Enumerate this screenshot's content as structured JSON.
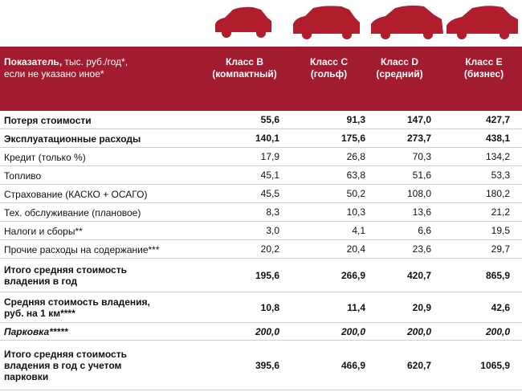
{
  "header": {
    "label_bold": "Показатель,",
    "label_rest": "тыс. руб./год*,",
    "label_line2": "если не указано иное*",
    "columns": [
      [
        "Класс B",
        "(компактный)"
      ],
      [
        "Класс C",
        "(гольф)"
      ],
      [
        "Класс D",
        "(средний)"
      ],
      [
        "Класс E",
        "(бизнес)"
      ]
    ]
  },
  "table": {
    "rows": [
      {
        "label": [
          "Потеря стоимости"
        ],
        "style": "bold",
        "values": [
          "55,6",
          "91,3",
          "147,0",
          "427,7"
        ]
      },
      {
        "label": [
          "Эксплуатационные расходы"
        ],
        "style": "bold",
        "values": [
          "140,1",
          "175,6",
          "273,7",
          "438,1"
        ]
      },
      {
        "label": [
          "Кредит (только %)"
        ],
        "style": "normal",
        "values": [
          "17,9",
          "26,8",
          "70,3",
          "134,2"
        ]
      },
      {
        "label": [
          "Топливо"
        ],
        "style": "normal",
        "values": [
          "45,1",
          "63,8",
          "51,6",
          "53,3"
        ]
      },
      {
        "label": [
          "Страхование (КАСКО + ОСАГО)"
        ],
        "style": "normal",
        "values": [
          "45,5",
          "50,2",
          "108,0",
          "180,2"
        ]
      },
      {
        "label": [
          "Тех. обслуживание (плановое)"
        ],
        "style": "normal",
        "values": [
          "8,3",
          "10,3",
          "13,6",
          "21,2"
        ]
      },
      {
        "label": [
          "Налоги и сборы**"
        ],
        "style": "normal",
        "values": [
          "3,0",
          "4,1",
          "6,6",
          "19,5"
        ]
      },
      {
        "label": [
          "Прочие расходы на содержание***"
        ],
        "style": "normal",
        "values": [
          "20,2",
          "20,4",
          "23,6",
          "29,7"
        ]
      },
      {
        "label": [
          "Итого средняя стоимость",
          "владения в год"
        ],
        "style": "bold",
        "values": [
          "195,6",
          "266,9",
          "420,7",
          "865,9"
        ]
      },
      {
        "label": [
          "Средняя стоимость владения,",
          "руб. на 1 км****"
        ],
        "style": "bold",
        "values": [
          "10,8",
          "11,4",
          "20,9",
          "42,6"
        ]
      },
      {
        "label": [
          "Парковка*****"
        ],
        "style": "bold-italic",
        "values": [
          "200,0",
          "200,0",
          "200,0",
          "200,0"
        ]
      },
      {
        "label": [
          "Итого средняя стоимость",
          "владения в год с учетом",
          "парковки"
        ],
        "style": "bold",
        "values": [
          "395,6",
          "466,9",
          "620,7",
          "1065,9"
        ]
      }
    ]
  }
}
